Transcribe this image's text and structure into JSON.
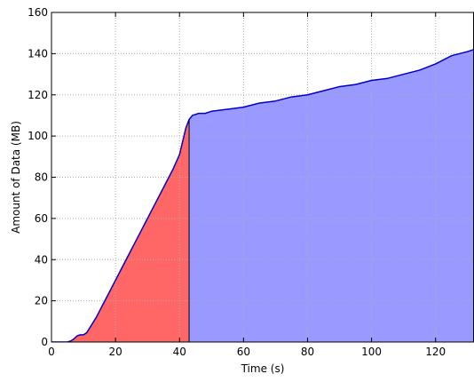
{
  "chart_data": {
    "type": "area",
    "title": "",
    "xlabel": "Time (s)",
    "ylabel": "Amount of Data (MB)",
    "xlim": [
      0,
      132
    ],
    "ylim": [
      0,
      160
    ],
    "xticks": [
      0,
      20,
      40,
      60,
      80,
      100,
      120
    ],
    "yticks": [
      0,
      20,
      40,
      60,
      80,
      100,
      120,
      140,
      160
    ],
    "grid": true,
    "split_x": 43,
    "colors": {
      "line": "#0000cc",
      "fill_before_split": "#ff6666",
      "fill_after_split": "#9999ff",
      "grid": "#b0b0b0"
    },
    "series": [
      {
        "points": [
          [
            0,
            0
          ],
          [
            5,
            0
          ],
          [
            6,
            0.5
          ],
          [
            7,
            1.5
          ],
          [
            8,
            3
          ],
          [
            9,
            3.5
          ],
          [
            10,
            3.5
          ],
          [
            11,
            4.5
          ],
          [
            12,
            7
          ],
          [
            14,
            12
          ],
          [
            16,
            18
          ],
          [
            18,
            24
          ],
          [
            20,
            30
          ],
          [
            22,
            36
          ],
          [
            24,
            42
          ],
          [
            26,
            48
          ],
          [
            28,
            54
          ],
          [
            30,
            60
          ],
          [
            32,
            66
          ],
          [
            34,
            72
          ],
          [
            36,
            78
          ],
          [
            38,
            84
          ],
          [
            40,
            91
          ],
          [
            42,
            104
          ],
          [
            43,
            108
          ],
          [
            44,
            110
          ],
          [
            46,
            111
          ],
          [
            48,
            111
          ],
          [
            50,
            112
          ],
          [
            55,
            113
          ],
          [
            60,
            114
          ],
          [
            65,
            116
          ],
          [
            70,
            117
          ],
          [
            75,
            119
          ],
          [
            80,
            120
          ],
          [
            85,
            122
          ],
          [
            90,
            124
          ],
          [
            95,
            125
          ],
          [
            100,
            127
          ],
          [
            105,
            128
          ],
          [
            110,
            130
          ],
          [
            115,
            132
          ],
          [
            120,
            135
          ],
          [
            125,
            139
          ],
          [
            130,
            141
          ],
          [
            132,
            142
          ]
        ]
      }
    ]
  }
}
